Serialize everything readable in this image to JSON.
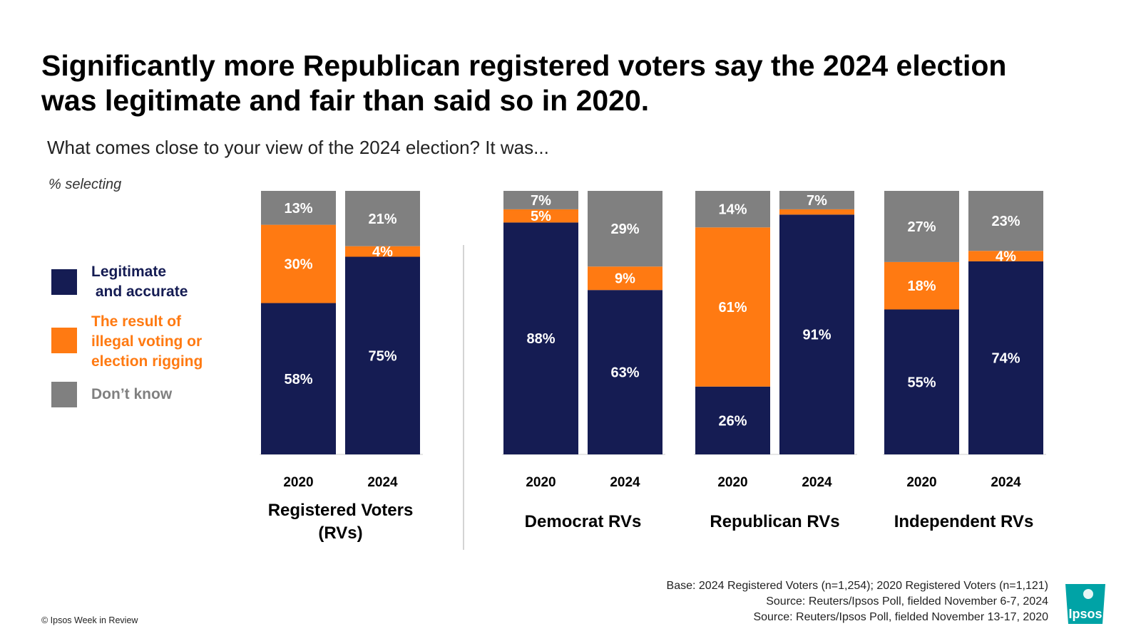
{
  "title_lines": [
    "Significantly more Republican registered voters say the 2024 election",
    "was legitimate and fair than said so in 2020."
  ],
  "subtitle": "What comes close to your view of the 2024 election? It was...",
  "note": "% selecting",
  "legend": [
    {
      "lines": [
        "Legitimate",
        " and accurate"
      ],
      "color": "#151c53",
      "text_color": "#151c53"
    },
    {
      "lines": [
        "The result of",
        "illegal voting or",
        "election rigging"
      ],
      "color": "#ff7a12",
      "text_color": "#ff7a12"
    },
    {
      "lines": [
        "Don’t know"
      ],
      "color": "#808080",
      "text_color": "#808080"
    }
  ],
  "chart_data": {
    "type": "bar",
    "stacked": true,
    "percent_scale": [
      0,
      100
    ],
    "series": [
      {
        "name": "Legitimate and accurate",
        "color": "#151c53"
      },
      {
        "name": "The result of illegal voting or election rigging",
        "color": "#ff7a12"
      },
      {
        "name": "Don’t know",
        "color": "#808080"
      }
    ],
    "groups": [
      {
        "name_lines": [
          "Registered Voters",
          "(RVs)"
        ],
        "bars": [
          {
            "year": "2020",
            "values": [
              58,
              30,
              13
            ],
            "labels": [
              "58%",
              "30%",
              "13%"
            ]
          },
          {
            "year": "2024",
            "values": [
              75,
              4,
              21
            ],
            "labels": [
              "75%",
              "4%",
              "21%"
            ]
          }
        ]
      },
      {
        "name_lines": [
          "Democrat RVs"
        ],
        "bars": [
          {
            "year": "2020",
            "values": [
              88,
              5,
              7
            ],
            "labels": [
              "88%",
              "5%",
              "7%"
            ]
          },
          {
            "year": "2024",
            "values": [
              63,
              9,
              29
            ],
            "labels": [
              "63%",
              "9%",
              "29%"
            ]
          }
        ]
      },
      {
        "name_lines": [
          "Republican RVs"
        ],
        "bars": [
          {
            "year": "2020",
            "values": [
              26,
              61,
              14
            ],
            "labels": [
              "26%",
              "61%",
              "14%"
            ]
          },
          {
            "year": "2024",
            "values": [
              91,
              2,
              7
            ],
            "labels": [
              "91%",
              "",
              "7%"
            ]
          }
        ]
      },
      {
        "name_lines": [
          "Independent RVs"
        ],
        "bars": [
          {
            "year": "2020",
            "values": [
              55,
              18,
              27
            ],
            "labels": [
              "55%",
              "18%",
              "27%"
            ]
          },
          {
            "year": "2024",
            "values": [
              74,
              4,
              23
            ],
            "labels": [
              "74%",
              "4%",
              "23%"
            ]
          }
        ]
      }
    ]
  },
  "footnotes": [
    "Base: 2024 Registered Voters (n=1,254); 2020 Registered Voters (n=1,121)",
    "Source: Reuters/Ipsos Poll, fielded November 6-7, 2024",
    "Source: Reuters/Ipsos Poll, fielded November 13-17, 2020"
  ],
  "copyright": "© Ipsos Week in Review",
  "logo": {
    "text": "Ipsos",
    "color": "#00a3a6"
  }
}
